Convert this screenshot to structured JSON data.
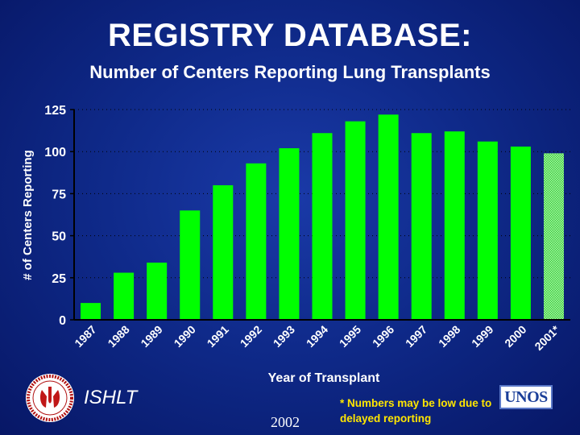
{
  "header": {
    "title": "REGISTRY DATABASE:",
    "subtitle": "Number of Centers Reporting Lung Transplants"
  },
  "colors": {
    "bar": "#00ff00",
    "bar_hatched": "#66dd66",
    "axis": "#000000",
    "grid": "#000000",
    "note": "#ffe600"
  },
  "chart_data": {
    "type": "bar",
    "title": "",
    "xlabel": "Year of Transplant",
    "ylabel": "# of Centers Reporting",
    "categories": [
      "1987",
      "1988",
      "1989",
      "1990",
      "1991",
      "1992",
      "1993",
      "1994",
      "1995",
      "1996",
      "1997",
      "1998",
      "1999",
      "2000",
      "2001*"
    ],
    "values": [
      10,
      28,
      34,
      65,
      80,
      93,
      102,
      111,
      118,
      122,
      111,
      112,
      106,
      103,
      99
    ],
    "hatched_categories": [
      "2001*"
    ],
    "ylim": [
      0,
      125
    ],
    "yticks": [
      0,
      25,
      50,
      75,
      100,
      125
    ],
    "grid": true,
    "legend": "none"
  },
  "footer": {
    "brand": "ISHLT",
    "year": "2002",
    "note": "* Numbers may be low due to delayed reporting",
    "unos_logo": "UNOS"
  }
}
